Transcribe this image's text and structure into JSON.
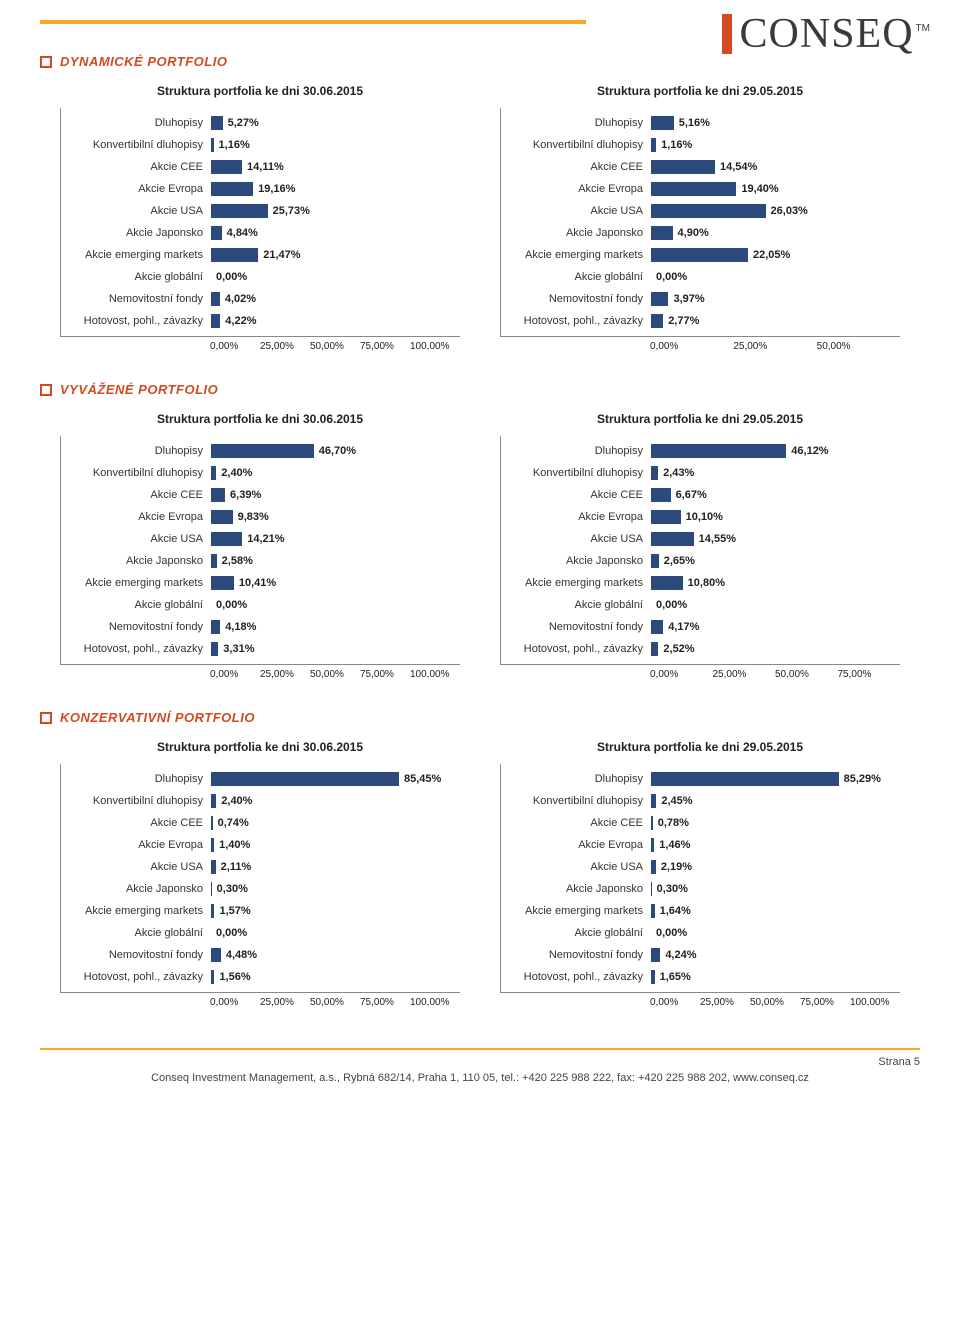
{
  "logo": {
    "text": "CONSEQ",
    "tm": "TM"
  },
  "bar_color": "#2d4a7c",
  "sections": [
    {
      "title": "DYNAMICKÉ PORTFOLIO",
      "charts": [
        {
          "title": "Struktura portfolia ke dni 30.06.2015",
          "x_max": 100,
          "x_ticks": [
            "0,00%",
            "25,00%",
            "50,00%",
            "75,00%",
            "100,00%"
          ],
          "rows": [
            {
              "label": "Dluhopisy",
              "value": 5.27,
              "text": "5,27%"
            },
            {
              "label": "Konvertibilní dluhopisy",
              "value": 1.16,
              "text": "1,16%"
            },
            {
              "label": "Akcie CEE",
              "value": 14.11,
              "text": "14,11%"
            },
            {
              "label": "Akcie Evropa",
              "value": 19.16,
              "text": "19,16%"
            },
            {
              "label": "Akcie USA",
              "value": 25.73,
              "text": "25,73%"
            },
            {
              "label": "Akcie Japonsko",
              "value": 4.84,
              "text": "4,84%"
            },
            {
              "label": "Akcie emerging markets",
              "value": 21.47,
              "text": "21,47%"
            },
            {
              "label": "Akcie globální",
              "value": 0.0,
              "text": "0,00%"
            },
            {
              "label": "Nemovitostní fondy",
              "value": 4.02,
              "text": "4,02%"
            },
            {
              "label": "Hotovost, pohl., závazky",
              "value": 4.22,
              "text": "4,22%"
            }
          ]
        },
        {
          "title": "Struktura portfolia ke dni 29.05.2015",
          "x_max": 50,
          "x_ticks": [
            "0,00%",
            "25,00%",
            "50,00%"
          ],
          "rows": [
            {
              "label": "Dluhopisy",
              "value": 5.16,
              "text": "5,16%"
            },
            {
              "label": "Konvertibilní dluhopisy",
              "value": 1.16,
              "text": "1,16%"
            },
            {
              "label": "Akcie CEE",
              "value": 14.54,
              "text": "14,54%"
            },
            {
              "label": "Akcie Evropa",
              "value": 19.4,
              "text": "19,40%"
            },
            {
              "label": "Akcie USA",
              "value": 26.03,
              "text": "26,03%"
            },
            {
              "label": "Akcie Japonsko",
              "value": 4.9,
              "text": "4,90%"
            },
            {
              "label": "Akcie emerging markets",
              "value": 22.05,
              "text": "22,05%"
            },
            {
              "label": "Akcie globální",
              "value": 0.0,
              "text": "0,00%"
            },
            {
              "label": "Nemovitostní fondy",
              "value": 3.97,
              "text": "3,97%"
            },
            {
              "label": "Hotovost, pohl., závazky",
              "value": 2.77,
              "text": "2,77%"
            }
          ]
        }
      ]
    },
    {
      "title": "VYVÁŽENÉ PORTFOLIO",
      "charts": [
        {
          "title": "Struktura portfolia ke dni 30.06.2015",
          "x_max": 100,
          "x_ticks": [
            "0,00%",
            "25,00%",
            "50,00%",
            "75,00%",
            "100,00%"
          ],
          "rows": [
            {
              "label": "Dluhopisy",
              "value": 46.7,
              "text": "46,70%"
            },
            {
              "label": "Konvertibilní dluhopisy",
              "value": 2.4,
              "text": "2,40%"
            },
            {
              "label": "Akcie CEE",
              "value": 6.39,
              "text": "6,39%"
            },
            {
              "label": "Akcie Evropa",
              "value": 9.83,
              "text": "9,83%"
            },
            {
              "label": "Akcie USA",
              "value": 14.21,
              "text": "14,21%"
            },
            {
              "label": "Akcie Japonsko",
              "value": 2.58,
              "text": "2,58%"
            },
            {
              "label": "Akcie emerging markets",
              "value": 10.41,
              "text": "10,41%"
            },
            {
              "label": "Akcie globální",
              "value": 0.0,
              "text": "0,00%"
            },
            {
              "label": "Nemovitostní fondy",
              "value": 4.18,
              "text": "4,18%"
            },
            {
              "label": "Hotovost, pohl., závazky",
              "value": 3.31,
              "text": "3,31%"
            }
          ]
        },
        {
          "title": "Struktura portfolia ke dni 29.05.2015",
          "x_max": 75,
          "x_ticks": [
            "0,00%",
            "25,00%",
            "50,00%",
            "75,00%"
          ],
          "rows": [
            {
              "label": "Dluhopisy",
              "value": 46.12,
              "text": "46,12%"
            },
            {
              "label": "Konvertibilní dluhopisy",
              "value": 2.43,
              "text": "2,43%"
            },
            {
              "label": "Akcie CEE",
              "value": 6.67,
              "text": "6,67%"
            },
            {
              "label": "Akcie Evropa",
              "value": 10.1,
              "text": "10,10%"
            },
            {
              "label": "Akcie USA",
              "value": 14.55,
              "text": "14,55%"
            },
            {
              "label": "Akcie Japonsko",
              "value": 2.65,
              "text": "2,65%"
            },
            {
              "label": "Akcie emerging markets",
              "value": 10.8,
              "text": "10,80%"
            },
            {
              "label": "Akcie globální",
              "value": 0.0,
              "text": "0,00%"
            },
            {
              "label": "Nemovitostní fondy",
              "value": 4.17,
              "text": "4,17%"
            },
            {
              "label": "Hotovost, pohl., závazky",
              "value": 2.52,
              "text": "2,52%"
            }
          ]
        }
      ]
    },
    {
      "title": "KONZERVATIVNÍ PORTFOLIO",
      "charts": [
        {
          "title": "Struktura portfolia ke dni 30.06.2015",
          "x_max": 100,
          "x_ticks": [
            "0,00%",
            "25,00%",
            "50,00%",
            "75,00%",
            "100,00%"
          ],
          "rows": [
            {
              "label": "Dluhopisy",
              "value": 85.45,
              "text": "85,45%"
            },
            {
              "label": "Konvertibilní dluhopisy",
              "value": 2.4,
              "text": "2,40%"
            },
            {
              "label": "Akcie CEE",
              "value": 0.74,
              "text": "0,74%"
            },
            {
              "label": "Akcie Evropa",
              "value": 1.4,
              "text": "1,40%"
            },
            {
              "label": "Akcie USA",
              "value": 2.11,
              "text": "2,11%"
            },
            {
              "label": "Akcie Japonsko",
              "value": 0.3,
              "text": "0,30%"
            },
            {
              "label": "Akcie emerging markets",
              "value": 1.57,
              "text": "1,57%"
            },
            {
              "label": "Akcie globální",
              "value": 0.0,
              "text": "0,00%"
            },
            {
              "label": "Nemovitostní fondy",
              "value": 4.48,
              "text": "4,48%"
            },
            {
              "label": "Hotovost, pohl., závazky",
              "value": 1.56,
              "text": "1,56%"
            }
          ]
        },
        {
          "title": "Struktura portfolia ke dni 29.05.2015",
          "x_max": 100,
          "x_ticks": [
            "0,00%",
            "25,00%",
            "50,00%",
            "75,00%",
            "100,00%"
          ],
          "rows": [
            {
              "label": "Dluhopisy",
              "value": 85.29,
              "text": "85,29%"
            },
            {
              "label": "Konvertibilní dluhopisy",
              "value": 2.45,
              "text": "2,45%"
            },
            {
              "label": "Akcie CEE",
              "value": 0.78,
              "text": "0,78%"
            },
            {
              "label": "Akcie Evropa",
              "value": 1.46,
              "text": "1,46%"
            },
            {
              "label": "Akcie USA",
              "value": 2.19,
              "text": "2,19%"
            },
            {
              "label": "Akcie Japonsko",
              "value": 0.3,
              "text": "0,30%"
            },
            {
              "label": "Akcie emerging markets",
              "value": 1.64,
              "text": "1,64%"
            },
            {
              "label": "Akcie globální",
              "value": 0.0,
              "text": "0,00%"
            },
            {
              "label": "Nemovitostní fondy",
              "value": 4.24,
              "text": "4,24%"
            },
            {
              "label": "Hotovost, pohl., závazky",
              "value": 1.65,
              "text": "1,65%"
            }
          ]
        }
      ]
    }
  ],
  "footer": {
    "page": "Strana  5",
    "info": "Conseq Investment Management, a.s., Rybná 682/14, Praha 1, 110 05,  tel.: +420 225 988 222,   fax: +420 225 988 202, www.conseq.cz"
  }
}
